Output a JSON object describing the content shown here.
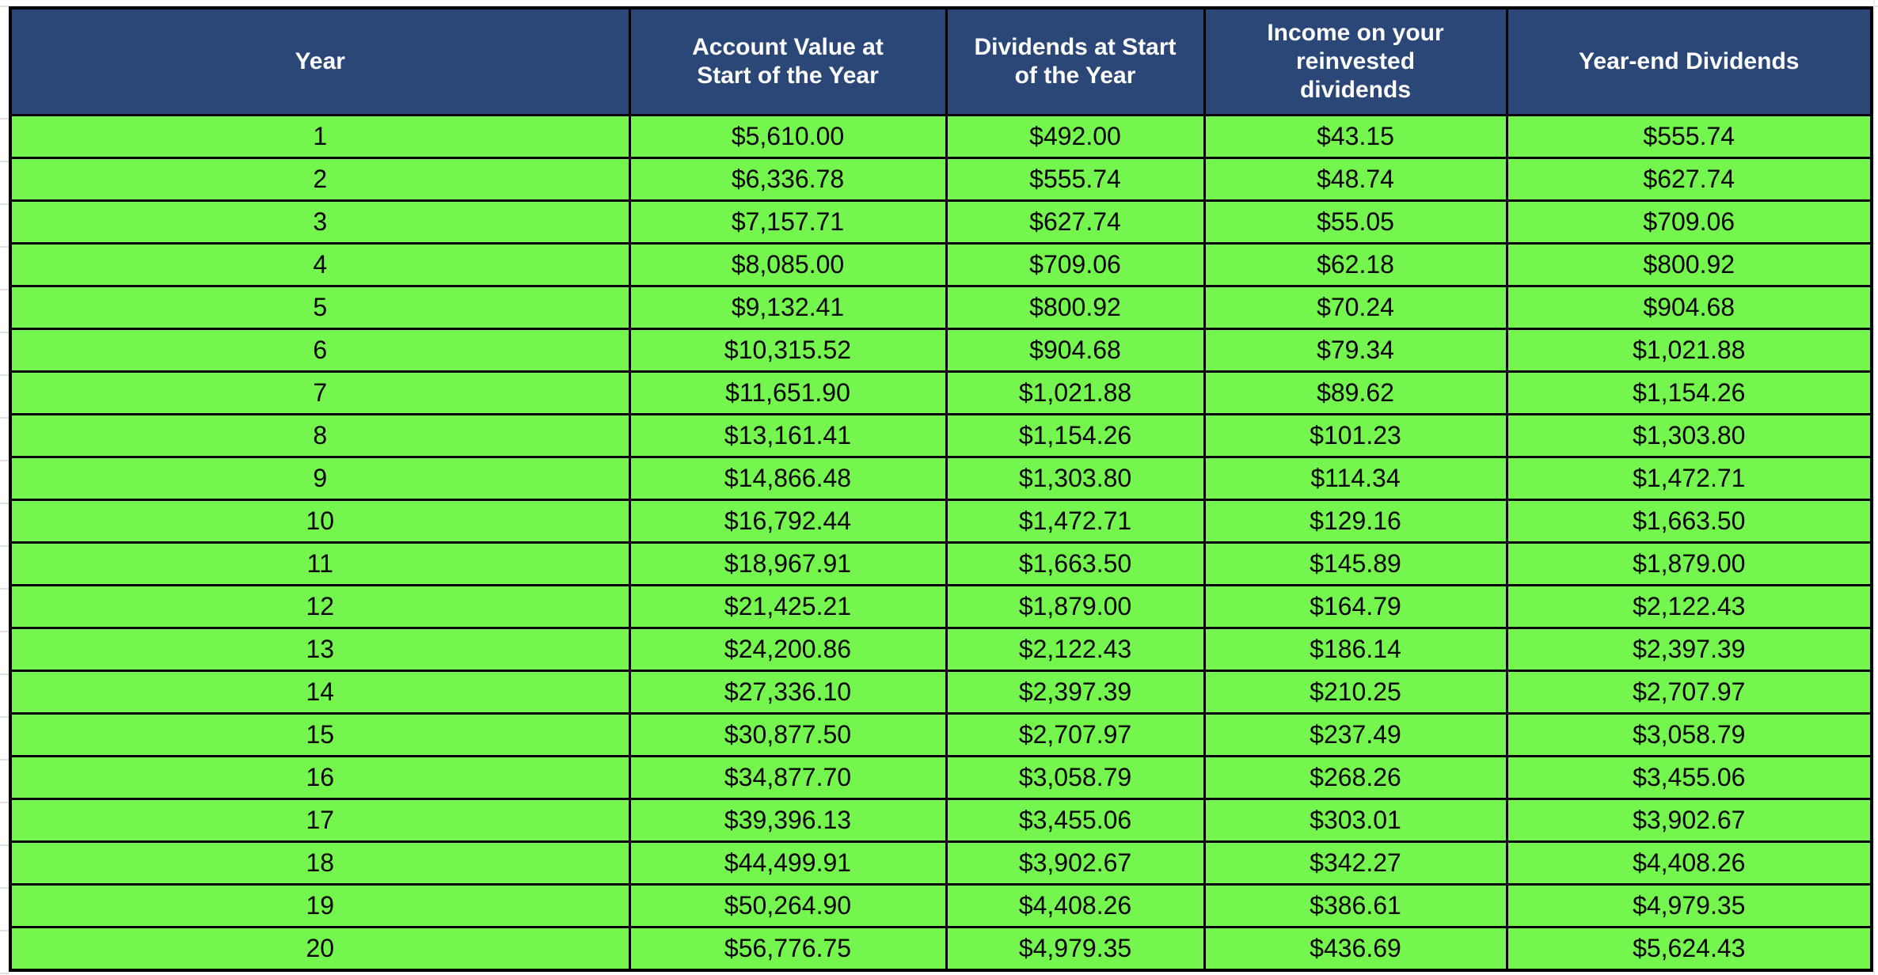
{
  "colors": {
    "header_bg": "#2B4778",
    "header_text": "#FFFFFF",
    "row_bg": "#75F64E",
    "cell_text": "#000000",
    "border": "#000000",
    "margin_gridline": "#E2E2E2"
  },
  "chart_data": {
    "type": "table",
    "title": "",
    "columns": [
      "Year",
      "Account Value at\nStart of the Year",
      "Dividends at Start\nof the Year",
      "Income on your\nreinvested\ndividends",
      "Year-end Dividends"
    ],
    "column_keys": [
      "year",
      "account-value-start",
      "dividends-start",
      "income-reinvested",
      "year-end-dividends"
    ],
    "rows": [
      [
        "1",
        "$5,610.00",
        "$492.00",
        "$43.15",
        "$555.74"
      ],
      [
        "2",
        "$6,336.78",
        "$555.74",
        "$48.74",
        "$627.74"
      ],
      [
        "3",
        "$7,157.71",
        "$627.74",
        "$55.05",
        "$709.06"
      ],
      [
        "4",
        "$8,085.00",
        "$709.06",
        "$62.18",
        "$800.92"
      ],
      [
        "5",
        "$9,132.41",
        "$800.92",
        "$70.24",
        "$904.68"
      ],
      [
        "6",
        "$10,315.52",
        "$904.68",
        "$79.34",
        "$1,021.88"
      ],
      [
        "7",
        "$11,651.90",
        "$1,021.88",
        "$89.62",
        "$1,154.26"
      ],
      [
        "8",
        "$13,161.41",
        "$1,154.26",
        "$101.23",
        "$1,303.80"
      ],
      [
        "9",
        "$14,866.48",
        "$1,303.80",
        "$114.34",
        "$1,472.71"
      ],
      [
        "10",
        "$16,792.44",
        "$1,472.71",
        "$129.16",
        "$1,663.50"
      ],
      [
        "11",
        "$18,967.91",
        "$1,663.50",
        "$145.89",
        "$1,879.00"
      ],
      [
        "12",
        "$21,425.21",
        "$1,879.00",
        "$164.79",
        "$2,122.43"
      ],
      [
        "13",
        "$24,200.86",
        "$2,122.43",
        "$186.14",
        "$2,397.39"
      ],
      [
        "14",
        "$27,336.10",
        "$2,397.39",
        "$210.25",
        "$2,707.97"
      ],
      [
        "15",
        "$30,877.50",
        "$2,707.97",
        "$237.49",
        "$3,058.79"
      ],
      [
        "16",
        "$34,877.70",
        "$3,058.79",
        "$268.26",
        "$3,455.06"
      ],
      [
        "17",
        "$39,396.13",
        "$3,455.06",
        "$303.01",
        "$3,902.67"
      ],
      [
        "18",
        "$44,499.91",
        "$3,902.67",
        "$342.27",
        "$4,408.26"
      ],
      [
        "19",
        "$50,264.90",
        "$4,408.26",
        "$386.61",
        "$4,979.35"
      ],
      [
        "20",
        "$56,776.75",
        "$4,979.35",
        "$436.69",
        "$5,624.43"
      ]
    ]
  }
}
